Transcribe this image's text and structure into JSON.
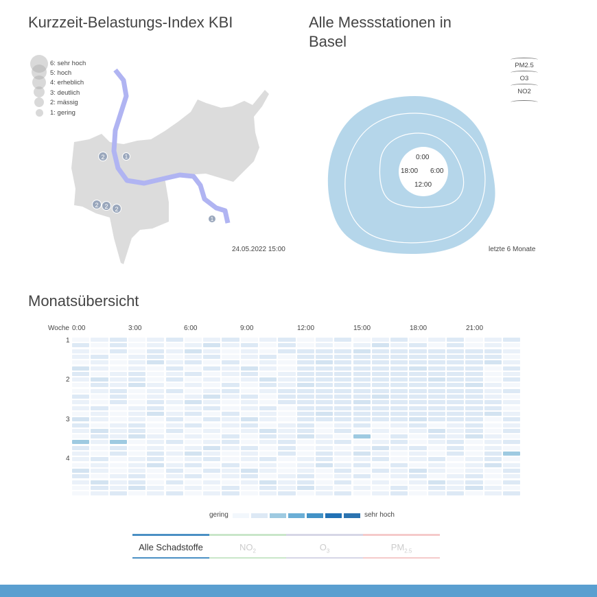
{
  "map": {
    "title": "Kurzzeit-Belastungs-Index KBI",
    "date": "24.05.2022 15:00",
    "legend": [
      {
        "label": "6: sehr hoch",
        "level": 6
      },
      {
        "label": "5: hoch",
        "level": 5
      },
      {
        "label": "4: erheblich",
        "level": 4
      },
      {
        "label": "3: deutlich",
        "level": 3
      },
      {
        "label": "2: mässig",
        "level": 2
      },
      {
        "label": "1: gering",
        "level": 1
      }
    ],
    "markers": [
      {
        "value": "2"
      },
      {
        "value": "1"
      },
      {
        "value": "2"
      },
      {
        "value": "2"
      },
      {
        "value": "2"
      },
      {
        "value": "1"
      }
    ],
    "colors": {
      "land": "#dcdcdc",
      "river": "#b0b4f2",
      "marker": "#9aa7bc"
    }
  },
  "stations": {
    "title": "Alle Messstationen in Basel",
    "selectors": [
      "PM2.5",
      "O3",
      "NO2"
    ],
    "hour_labels": [
      "0:00",
      "18:00",
      "6:00",
      "12:00"
    ],
    "note": "letzte 6 Monate",
    "color": "#b5d6ea"
  },
  "month": {
    "title": "Monatsübersicht",
    "week_header": "Woche",
    "hours": [
      "0:00",
      "3:00",
      "6:00",
      "9:00",
      "12:00",
      "15:00",
      "18:00",
      "21:00"
    ],
    "weeks": [
      "1",
      "2",
      "3",
      "4"
    ],
    "scale_low": "gering",
    "scale_high": "sehr hoch",
    "scale_colors": [
      "#f2f7fc",
      "#dde9f5",
      "#9ecae1",
      "#6baed6",
      "#4292c6",
      "#2171b5",
      "#2b73b0"
    ]
  },
  "tabs": [
    {
      "label": "Alle Schadstoffe",
      "sub": "",
      "color": "#4a8fc4",
      "active": true
    },
    {
      "label": "NO",
      "sub": "2",
      "color": "#c9e6c9",
      "active": false
    },
    {
      "label": "O",
      "sub": "3",
      "color": "#d6d6e6",
      "active": false
    },
    {
      "label": "PM",
      "sub": "2.5",
      "color": "#f5caca",
      "active": false
    }
  ]
}
